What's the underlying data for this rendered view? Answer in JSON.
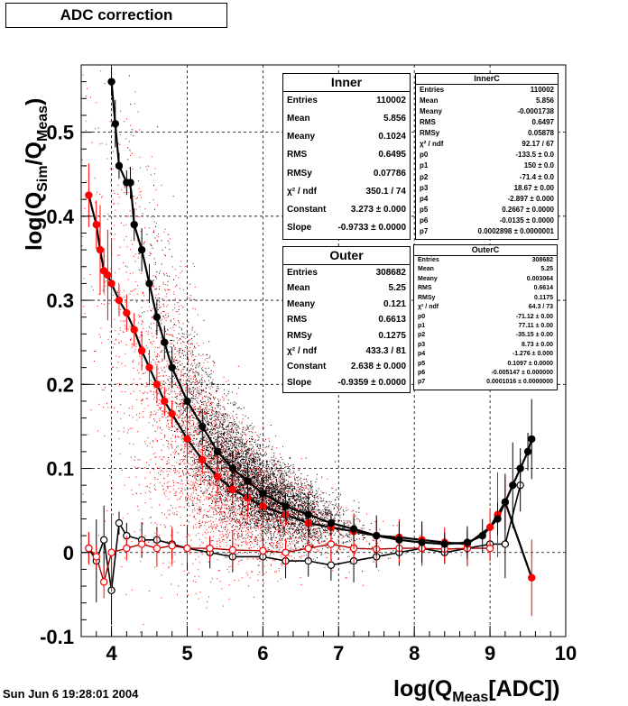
{
  "header": {
    "title": "ADC correction"
  },
  "footer": {
    "date": "Sun Jun  6 19:28:01 2004"
  },
  "chart_data": {
    "type": "scatter",
    "xlabel_main": "log(Q",
    "xlabel_sub": "Meas",
    "xlabel_tail": "[ADC])",
    "ylabel_main": "log(Q",
    "ylabel_sub1": "Sim",
    "ylabel_mid": "/Q",
    "ylabel_sub2": "Meas",
    "ylabel_tail": ")",
    "xlim": [
      3.6,
      10
    ],
    "ylim": [
      -0.1,
      0.58
    ],
    "xticks": [
      "4",
      "5",
      "6",
      "7",
      "8",
      "9",
      "10"
    ],
    "xtick_values": [
      4,
      5,
      6,
      7,
      8,
      9,
      10
    ],
    "yticks": [
      "-0.1",
      "0",
      "0.1",
      "0.2",
      "0.3",
      "0.4",
      "0.5"
    ],
    "ytick_values": [
      -0.1,
      0,
      0.1,
      0.2,
      0.3,
      0.4,
      0.5
    ],
    "grid": true,
    "colors": {
      "inner": "#000000",
      "outer": "#ff0000"
    },
    "inner_profile": {
      "x": [
        4.0,
        4.05,
        4.1,
        4.2,
        4.25,
        4.3,
        4.4,
        4.5,
        4.6,
        4.7,
        4.8,
        5.0,
        5.2,
        5.4,
        5.6,
        5.8,
        6.0,
        6.3,
        6.6,
        6.9,
        7.2,
        7.5,
        7.8,
        8.1,
        8.4,
        8.7,
        8.9,
        9.1,
        9.2,
        9.3,
        9.4,
        9.5,
        9.55
      ],
      "y": [
        0.56,
        0.51,
        0.46,
        0.44,
        0.44,
        0.39,
        0.36,
        0.32,
        0.28,
        0.25,
        0.22,
        0.18,
        0.15,
        0.12,
        0.1,
        0.085,
        0.07,
        0.055,
        0.045,
        0.035,
        0.028,
        0.02,
        0.015,
        0.012,
        0.01,
        0.012,
        0.02,
        0.04,
        0.06,
        0.08,
        0.1,
        0.12,
        0.135
      ]
    },
    "outer_profile": {
      "x": [
        3.7,
        3.8,
        3.85,
        3.9,
        3.95,
        4.0,
        4.1,
        4.2,
        4.3,
        4.4,
        4.5,
        4.6,
        4.7,
        4.8,
        5.0,
        5.2,
        5.4,
        5.6,
        5.8,
        6.0,
        6.3,
        6.6,
        6.9,
        7.2,
        7.5,
        7.8,
        8.1,
        8.4,
        8.7,
        9.0,
        9.1,
        9.2,
        9.55
      ],
      "y": [
        0.425,
        0.39,
        0.36,
        0.335,
        0.33,
        0.32,
        0.3,
        0.285,
        0.265,
        0.24,
        0.22,
        0.2,
        0.18,
        0.165,
        0.135,
        0.11,
        0.09,
        0.075,
        0.065,
        0.055,
        0.045,
        0.035,
        0.03,
        0.025,
        0.02,
        0.018,
        0.015,
        0.012,
        0.01,
        0.03,
        0.045,
        0.06,
        -0.03
      ]
    },
    "inner_residual": {
      "x": [
        3.7,
        3.8,
        3.9,
        4.0,
        4.1,
        4.2,
        4.4,
        4.6,
        4.8,
        5.0,
        5.3,
        5.6,
        6.0,
        6.3,
        6.6,
        6.9,
        7.2,
        7.5,
        7.8,
        8.1,
        8.4,
        8.7,
        9.0,
        9.2,
        9.4
      ],
      "y": [
        0.005,
        -0.01,
        0.015,
        -0.045,
        0.035,
        0.02,
        0.015,
        0.015,
        0.01,
        0.005,
        0.0,
        -0.005,
        -0.005,
        -0.01,
        -0.01,
        -0.015,
        -0.01,
        -0.005,
        0.0,
        0.005,
        0.0,
        0.005,
        0.01,
        0.01,
        0.08
      ]
    },
    "outer_residual": {
      "x": [
        3.7,
        3.8,
        3.9,
        4.0,
        4.2,
        4.4,
        4.6,
        4.8,
        5.0,
        5.3,
        5.6,
        6.0,
        6.3,
        6.6,
        6.9,
        7.2,
        7.5,
        7.8,
        8.1,
        8.4,
        8.7,
        9.0
      ],
      "y": [
        0.005,
        -0.005,
        -0.035,
        0.0,
        0.005,
        0.01,
        0.005,
        0.008,
        0.005,
        0.005,
        0.003,
        0.002,
        0.0,
        0.005,
        0.01,
        0.005,
        0.004,
        0.005,
        0.005,
        0.004,
        0.005,
        0.005
      ]
    },
    "inner_fit": {
      "p": [
        -133.5,
        150.0,
        -71.4,
        18.67,
        -2.897,
        0.2667,
        -0.0135,
        0.0002898
      ],
      "xrange": [
        4.0,
        9.55
      ]
    },
    "outer_fit": {
      "p": [
        -71.12,
        77.11,
        -35.15,
        8.73,
        -1.276,
        0.1097,
        -0.005147,
        0.0001016
      ],
      "xrange": [
        3.7,
        9.55
      ]
    }
  },
  "stats": {
    "inner": {
      "title": "Inner",
      "rows": [
        {
          "k": "Entries",
          "v": "110002"
        },
        {
          "k": "Mean",
          "v": "5.856"
        },
        {
          "k": "Meany",
          "v": "0.1024"
        },
        {
          "k": "RMS",
          "v": "0.6495"
        },
        {
          "k": "RMSy",
          "v": "0.07786"
        },
        {
          "k": "χ² / ndf",
          "v": "350.1 / 74"
        },
        {
          "k": "Constant",
          "v": "3.273 ± 0.000"
        },
        {
          "k": "Slope",
          "v": "-0.9733 ± 0.0000"
        }
      ]
    },
    "outer": {
      "title": "Outer",
      "rows": [
        {
          "k": "Entries",
          "v": "308682"
        },
        {
          "k": "Mean",
          "v": "5.25"
        },
        {
          "k": "Meany",
          "v": "0.121"
        },
        {
          "k": "RMS",
          "v": "0.6613"
        },
        {
          "k": "RMSy",
          "v": "0.1275"
        },
        {
          "k": "χ² / ndf",
          "v": "433.3 / 81"
        },
        {
          "k": "Constant",
          "v": "2.638 ± 0.000"
        },
        {
          "k": "Slope",
          "v": "-0.9359 ± 0.0000"
        }
      ]
    },
    "innerC": {
      "title": "InnerC",
      "rows": [
        {
          "k": "Entries",
          "v": "110002"
        },
        {
          "k": "Mean",
          "v": "5.856"
        },
        {
          "k": "Meany",
          "v": "-0.0001738"
        },
        {
          "k": "RMS",
          "v": "0.6497"
        },
        {
          "k": "RMSy",
          "v": "0.05878"
        },
        {
          "k": "χ² / ndf",
          "v": "92.17 / 67"
        },
        {
          "k": "p0",
          "v": "-133.5 ± 0.0"
        },
        {
          "k": "p1",
          "v": "150 ± 0.0"
        },
        {
          "k": "p2",
          "v": "-71.4 ± 0.0"
        },
        {
          "k": "p3",
          "v": "18.67 ± 0.00"
        },
        {
          "k": "p4",
          "v": "-2.897 ± 0.000"
        },
        {
          "k": "p5",
          "v": "0.2667 ± 0.0000"
        },
        {
          "k": "p6",
          "v": "-0.0135 ± 0.0000"
        },
        {
          "k": "p7",
          "v": "0.0002898 ± 0.0000001"
        }
      ]
    },
    "outerC": {
      "title": "OuterC",
      "rows": [
        {
          "k": "Entries",
          "v": "308682"
        },
        {
          "k": "Mean",
          "v": "5.25"
        },
        {
          "k": "Meany",
          "v": "0.003064"
        },
        {
          "k": "RMS",
          "v": "0.6614"
        },
        {
          "k": "RMSy",
          "v": "0.1175"
        },
        {
          "k": "χ² / ndf",
          "v": "64.3 / 73"
        },
        {
          "k": "p0",
          "v": "-71.12 ± 0.00"
        },
        {
          "k": "p1",
          "v": "77.11 ± 0.00"
        },
        {
          "k": "p2",
          "v": "-35.15 ± 0.00"
        },
        {
          "k": "p3",
          "v": "8.73 ± 0.00"
        },
        {
          "k": "p4",
          "v": "-1.276 ± 0.000"
        },
        {
          "k": "p5",
          "v": "0.1097 ± 0.0000"
        },
        {
          "k": "p6",
          "v": "-0.005147 ± 0.000000"
        },
        {
          "k": "p7",
          "v": "0.0001016 ± 0.0000000"
        }
      ]
    }
  }
}
